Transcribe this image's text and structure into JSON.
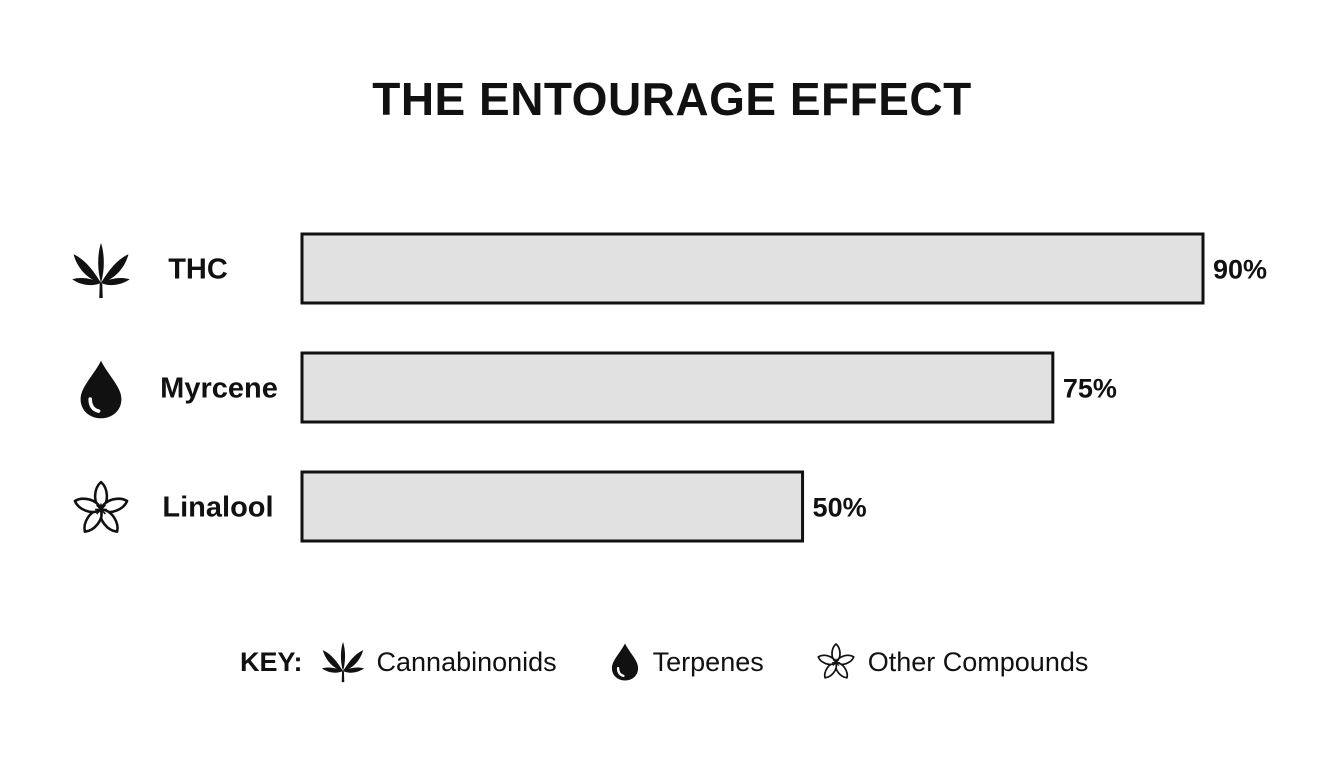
{
  "chart_data": {
    "type": "bar",
    "orientation": "horizontal",
    "title": "THE ENTOURAGE EFFECT",
    "categories": [
      "THC",
      "Myrcene",
      "Linalool"
    ],
    "values": [
      90,
      75,
      50
    ],
    "value_labels": [
      "90%",
      "75%",
      "50%"
    ],
    "category_icons": [
      "cannabis-leaf-icon",
      "droplet-icon",
      "flower-icon"
    ],
    "value_unit": "%",
    "bar_color": "#e1e1e1",
    "bar_border_color": "#111111",
    "grid": false,
    "legend_placement": "bottom",
    "legend": {
      "title": "KEY:",
      "items": [
        {
          "label": "Cannabinonids",
          "icon": "cannabis-leaf-icon"
        },
        {
          "label": "Terpenes",
          "icon": "droplet-icon"
        },
        {
          "label": "Other Compounds",
          "icon": "flower-icon"
        }
      ]
    }
  }
}
